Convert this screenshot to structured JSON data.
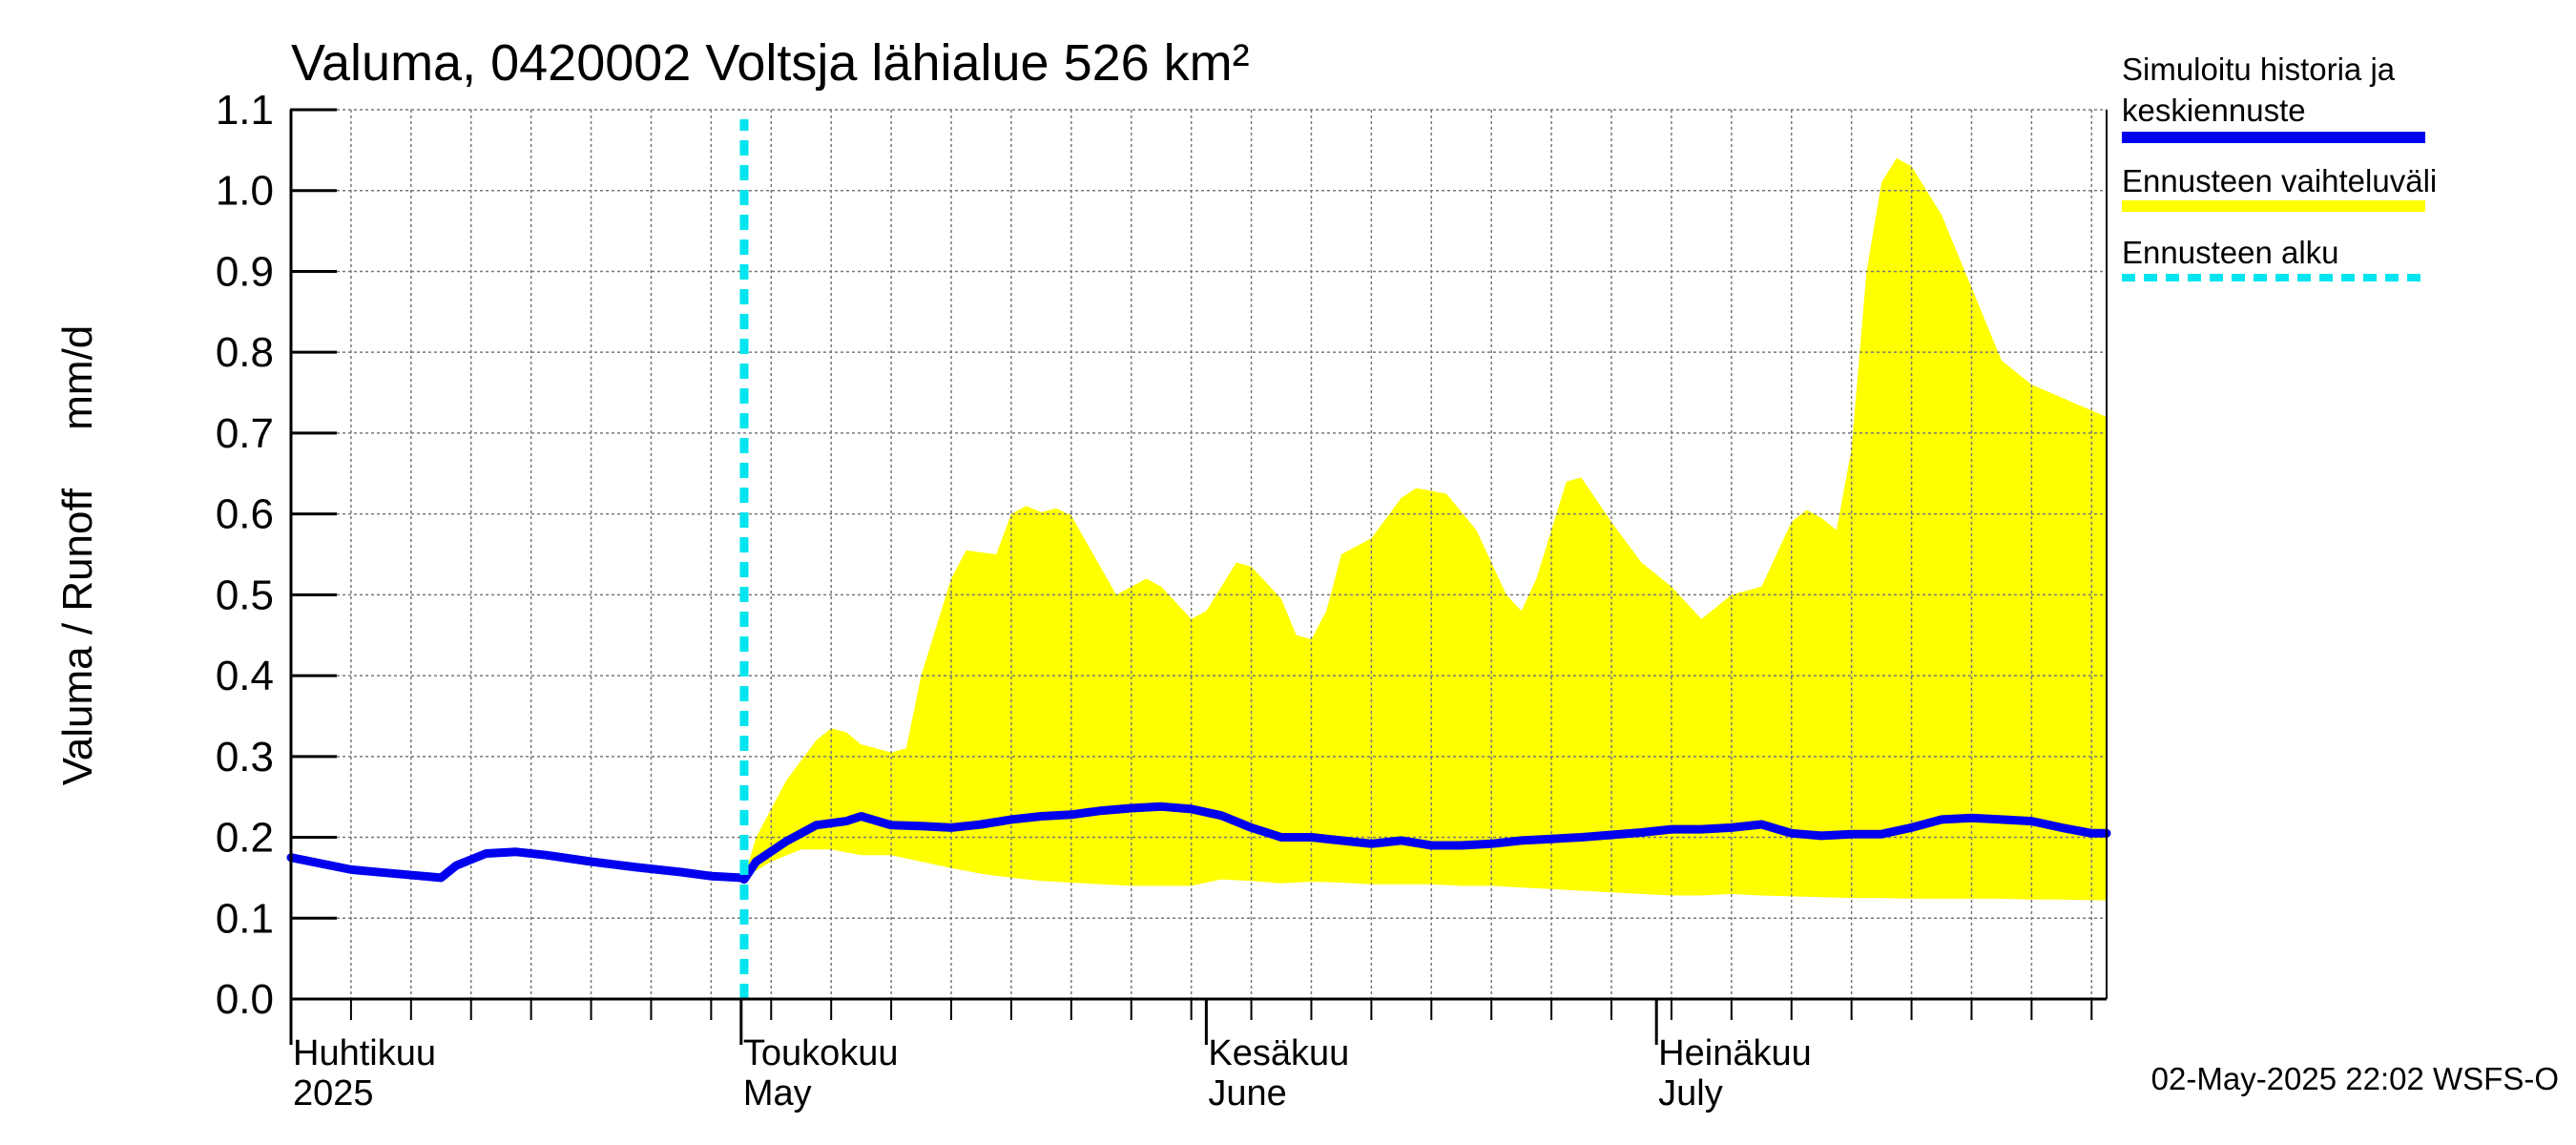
{
  "chart_data": {
    "type": "line",
    "title": "Valuma, 0420002 Voltsja lähialue 526 km²",
    "ylabel": "Valuma / Runoff     mm/d",
    "xlabel": "",
    "ylim": [
      0.0,
      1.1
    ],
    "yticks": [
      "0.0",
      "0.1",
      "0.2",
      "0.3",
      "0.4",
      "0.5",
      "0.6",
      "0.7",
      "0.8",
      "0.9",
      "1.0",
      "1.1"
    ],
    "x_start_day": 0,
    "x_end_day": 121,
    "forecast_start_day": 30.2,
    "month_labels": [
      {
        "day": 0,
        "fi": "Huhtikuu",
        "en": "2025"
      },
      {
        "day": 30,
        "fi": "Toukokuu",
        "en": "May"
      },
      {
        "day": 61,
        "fi": "Kesäkuu",
        "en": "June"
      },
      {
        "day": 91,
        "fi": "Heinäkuu",
        "en": "July"
      }
    ],
    "series": [
      {
        "name": "Simuloitu historia ja keskiennuste",
        "color": "#0000ee",
        "points": [
          [
            0,
            0.175
          ],
          [
            4,
            0.16
          ],
          [
            7,
            0.155
          ],
          [
            10,
            0.15
          ],
          [
            11,
            0.165
          ],
          [
            13,
            0.18
          ],
          [
            15,
            0.182
          ],
          [
            17,
            0.178
          ],
          [
            20,
            0.17
          ],
          [
            23,
            0.163
          ],
          [
            26,
            0.157
          ],
          [
            28,
            0.152
          ],
          [
            30,
            0.15
          ],
          [
            30.2,
            0.148
          ],
          [
            31,
            0.17
          ],
          [
            33,
            0.195
          ],
          [
            35,
            0.215
          ],
          [
            37,
            0.22
          ],
          [
            38,
            0.226
          ],
          [
            40,
            0.215
          ],
          [
            42,
            0.214
          ],
          [
            44,
            0.212
          ],
          [
            46,
            0.216
          ],
          [
            48,
            0.222
          ],
          [
            50,
            0.226
          ],
          [
            52,
            0.228
          ],
          [
            54,
            0.233
          ],
          [
            56,
            0.236
          ],
          [
            58,
            0.238
          ],
          [
            60,
            0.235
          ],
          [
            62,
            0.227
          ],
          [
            64,
            0.212
          ],
          [
            66,
            0.2
          ],
          [
            68,
            0.2
          ],
          [
            70,
            0.196
          ],
          [
            72,
            0.192
          ],
          [
            74,
            0.196
          ],
          [
            76,
            0.19
          ],
          [
            78,
            0.19
          ],
          [
            80,
            0.192
          ],
          [
            82,
            0.196
          ],
          [
            84,
            0.198
          ],
          [
            86,
            0.2
          ],
          [
            88,
            0.203
          ],
          [
            90,
            0.206
          ],
          [
            92,
            0.21
          ],
          [
            94,
            0.21
          ],
          [
            96,
            0.212
          ],
          [
            98,
            0.216
          ],
          [
            100,
            0.205
          ],
          [
            102,
            0.202
          ],
          [
            104,
            0.204
          ],
          [
            106,
            0.204
          ],
          [
            108,
            0.212
          ],
          [
            110,
            0.222
          ],
          [
            112,
            0.224
          ],
          [
            114,
            0.222
          ],
          [
            116,
            0.22
          ],
          [
            118,
            0.212
          ],
          [
            120,
            0.205
          ],
          [
            121,
            0.205
          ]
        ]
      },
      {
        "name": "Ennusteen vaihteluväli",
        "color": "#ffff00",
        "upper": [
          [
            30.2,
            0.15
          ],
          [
            31,
            0.2
          ],
          [
            33,
            0.27
          ],
          [
            35,
            0.32
          ],
          [
            36,
            0.335
          ],
          [
            37,
            0.33
          ],
          [
            38,
            0.315
          ],
          [
            40,
            0.305
          ],
          [
            41,
            0.31
          ],
          [
            42,
            0.4
          ],
          [
            44,
            0.52
          ],
          [
            45,
            0.555
          ],
          [
            47,
            0.55
          ],
          [
            48,
            0.6
          ],
          [
            49,
            0.61
          ],
          [
            50,
            0.602
          ],
          [
            51,
            0.607
          ],
          [
            52,
            0.598
          ],
          [
            55,
            0.5
          ],
          [
            57,
            0.52
          ],
          [
            58,
            0.51
          ],
          [
            60,
            0.47
          ],
          [
            61,
            0.48
          ],
          [
            63,
            0.54
          ],
          [
            64,
            0.535
          ],
          [
            66,
            0.495
          ],
          [
            67,
            0.45
          ],
          [
            68,
            0.445
          ],
          [
            69,
            0.48
          ],
          [
            70,
            0.55
          ],
          [
            72,
            0.57
          ],
          [
            74,
            0.62
          ],
          [
            75,
            0.632
          ],
          [
            77,
            0.625
          ],
          [
            79,
            0.58
          ],
          [
            81,
            0.5
          ],
          [
            82,
            0.48
          ],
          [
            83,
            0.52
          ],
          [
            84,
            0.58
          ],
          [
            85,
            0.64
          ],
          [
            86,
            0.645
          ],
          [
            88,
            0.59
          ],
          [
            90,
            0.54
          ],
          [
            92,
            0.51
          ],
          [
            94,
            0.47
          ],
          [
            96,
            0.5
          ],
          [
            98,
            0.51
          ],
          [
            100,
            0.59
          ],
          [
            101,
            0.605
          ],
          [
            102,
            0.595
          ],
          [
            103,
            0.58
          ],
          [
            104,
            0.68
          ],
          [
            105,
            0.9
          ],
          [
            106,
            1.01
          ],
          [
            107,
            1.04
          ],
          [
            108,
            1.03
          ],
          [
            110,
            0.97
          ],
          [
            112,
            0.88
          ],
          [
            114,
            0.79
          ],
          [
            116,
            0.76
          ],
          [
            121,
            0.72
          ]
        ],
        "lower": [
          [
            30.2,
            0.15
          ],
          [
            32,
            0.17
          ],
          [
            34,
            0.185
          ],
          [
            36,
            0.185
          ],
          [
            38,
            0.178
          ],
          [
            40,
            0.178
          ],
          [
            42,
            0.17
          ],
          [
            44,
            0.162
          ],
          [
            46,
            0.155
          ],
          [
            48,
            0.15
          ],
          [
            50,
            0.146
          ],
          [
            52,
            0.144
          ],
          [
            54,
            0.142
          ],
          [
            56,
            0.14
          ],
          [
            58,
            0.14
          ],
          [
            60,
            0.14
          ],
          [
            62,
            0.148
          ],
          [
            64,
            0.146
          ],
          [
            66,
            0.143
          ],
          [
            68,
            0.145
          ],
          [
            70,
            0.144
          ],
          [
            72,
            0.142
          ],
          [
            74,
            0.142
          ],
          [
            76,
            0.142
          ],
          [
            78,
            0.14
          ],
          [
            80,
            0.14
          ],
          [
            82,
            0.138
          ],
          [
            84,
            0.136
          ],
          [
            86,
            0.134
          ],
          [
            88,
            0.132
          ],
          [
            90,
            0.13
          ],
          [
            92,
            0.128
          ],
          [
            94,
            0.128
          ],
          [
            96,
            0.13
          ],
          [
            98,
            0.128
          ],
          [
            100,
            0.127
          ],
          [
            102,
            0.126
          ],
          [
            104,
            0.125
          ],
          [
            106,
            0.125
          ],
          [
            108,
            0.124
          ],
          [
            110,
            0.124
          ],
          [
            112,
            0.124
          ],
          [
            114,
            0.124
          ],
          [
            116,
            0.123
          ],
          [
            118,
            0.123
          ],
          [
            121,
            0.122
          ]
        ]
      },
      {
        "name": "Ennusteen alku",
        "color": "#00e5ee"
      }
    ],
    "legend": [
      {
        "label_line1": "Simuloitu historia ja",
        "label_line2": "keskiennuste",
        "color": "#0000ee",
        "style": "solid"
      },
      {
        "label_line1": "Ennusteen vaihteluväli",
        "label_line2": "",
        "color": "#ffff00",
        "style": "solid"
      },
      {
        "label_line1": "Ennusteen alku",
        "label_line2": "",
        "color": "#00e5ee",
        "style": "dashed"
      }
    ],
    "legend_position": "right",
    "grid": true,
    "footer": "02-May-2025 22:02 WSFS-O"
  }
}
